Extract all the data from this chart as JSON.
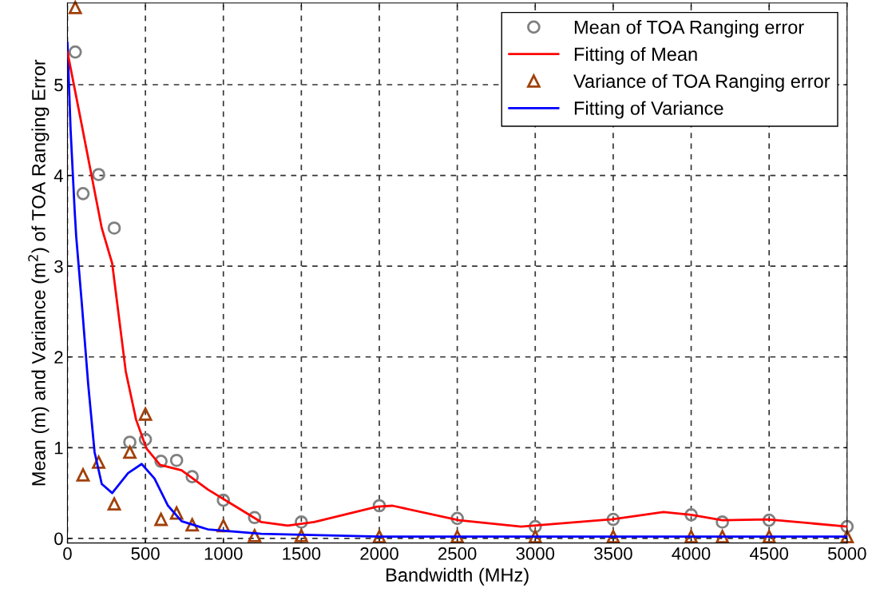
{
  "chart_data": {
    "type": "scatter",
    "xlabel": "Bandwidth (MHz)",
    "ylabel": "Mean (m) and Variance (m$^{2}$) of TOA Ranging Error",
    "xlim": [
      0,
      5000
    ],
    "xticks": [
      0,
      500,
      1000,
      1500,
      2000,
      2500,
      3000,
      3500,
      4000,
      4500,
      5000
    ],
    "ylim": [
      -0.05,
      5.9
    ],
    "yticks": [
      0,
      1,
      2,
      3,
      4,
      5
    ],
    "grid": true,
    "legend": "top right",
    "series": [
      {
        "name": "Mean of TOA Ranging error",
        "marker": "circle",
        "color": "#808080",
        "x": [
          50,
          100,
          200,
          300,
          400,
          500,
          600,
          700,
          800,
          1000,
          1200,
          1500,
          2000,
          2500,
          3000,
          3500,
          4000,
          4200,
          4500,
          5000
        ],
        "values": [
          5.36,
          3.8,
          4.01,
          3.42,
          1.06,
          1.09,
          0.85,
          0.86,
          0.68,
          0.42,
          0.23,
          0.18,
          0.36,
          0.22,
          0.13,
          0.21,
          0.26,
          0.18,
          0.2,
          0.13
        ]
      },
      {
        "name": "Fitting of Mean",
        "type": "line",
        "marker": "none",
        "color": "#ff0000",
        "x": [
          0,
          80,
          220,
          287,
          374,
          440,
          507,
          594,
          732,
          900,
          1071,
          1243,
          1413,
          1583,
          1987,
          2085,
          2510,
          2910,
          3489,
          3822,
          4000,
          4200,
          4493,
          5000
        ],
        "values": [
          5.36,
          4.66,
          3.42,
          3.03,
          1.84,
          1.31,
          0.99,
          0.81,
          0.75,
          0.54,
          0.36,
          0.18,
          0.14,
          0.18,
          0.35,
          0.36,
          0.2,
          0.13,
          0.21,
          0.29,
          0.26,
          0.2,
          0.21,
          0.13
        ]
      },
      {
        "name": "Variance of TOA Ranging error",
        "marker": "triangle",
        "color": "#a0400a",
        "x": [
          50,
          100,
          200,
          300,
          400,
          500,
          600,
          700,
          800,
          1000,
          1200,
          1500,
          2000,
          2500,
          3000,
          3500,
          4000,
          4200,
          4500,
          5000
        ],
        "values": [
          5.85,
          0.7,
          0.84,
          0.38,
          0.95,
          1.37,
          0.21,
          0.28,
          0.15,
          0.14,
          0.03,
          0.03,
          0.02,
          0.02,
          0.02,
          0.02,
          0.02,
          0.02,
          0.02,
          0.02
        ]
      },
      {
        "name": "Fitting of Variance",
        "type": "line",
        "marker": "none",
        "color": "#0000ff",
        "x": [
          0,
          20,
          46,
          56,
          92,
          133,
          174,
          220,
          287,
          389,
          476,
          558,
          645,
          732,
          900,
          1243,
          2000,
          5000
        ],
        "values": [
          5.46,
          4.51,
          3.62,
          3.33,
          2.59,
          1.7,
          0.95,
          0.6,
          0.5,
          0.72,
          0.82,
          0.66,
          0.36,
          0.19,
          0.1,
          0.05,
          0.02,
          0.02
        ]
      }
    ]
  }
}
